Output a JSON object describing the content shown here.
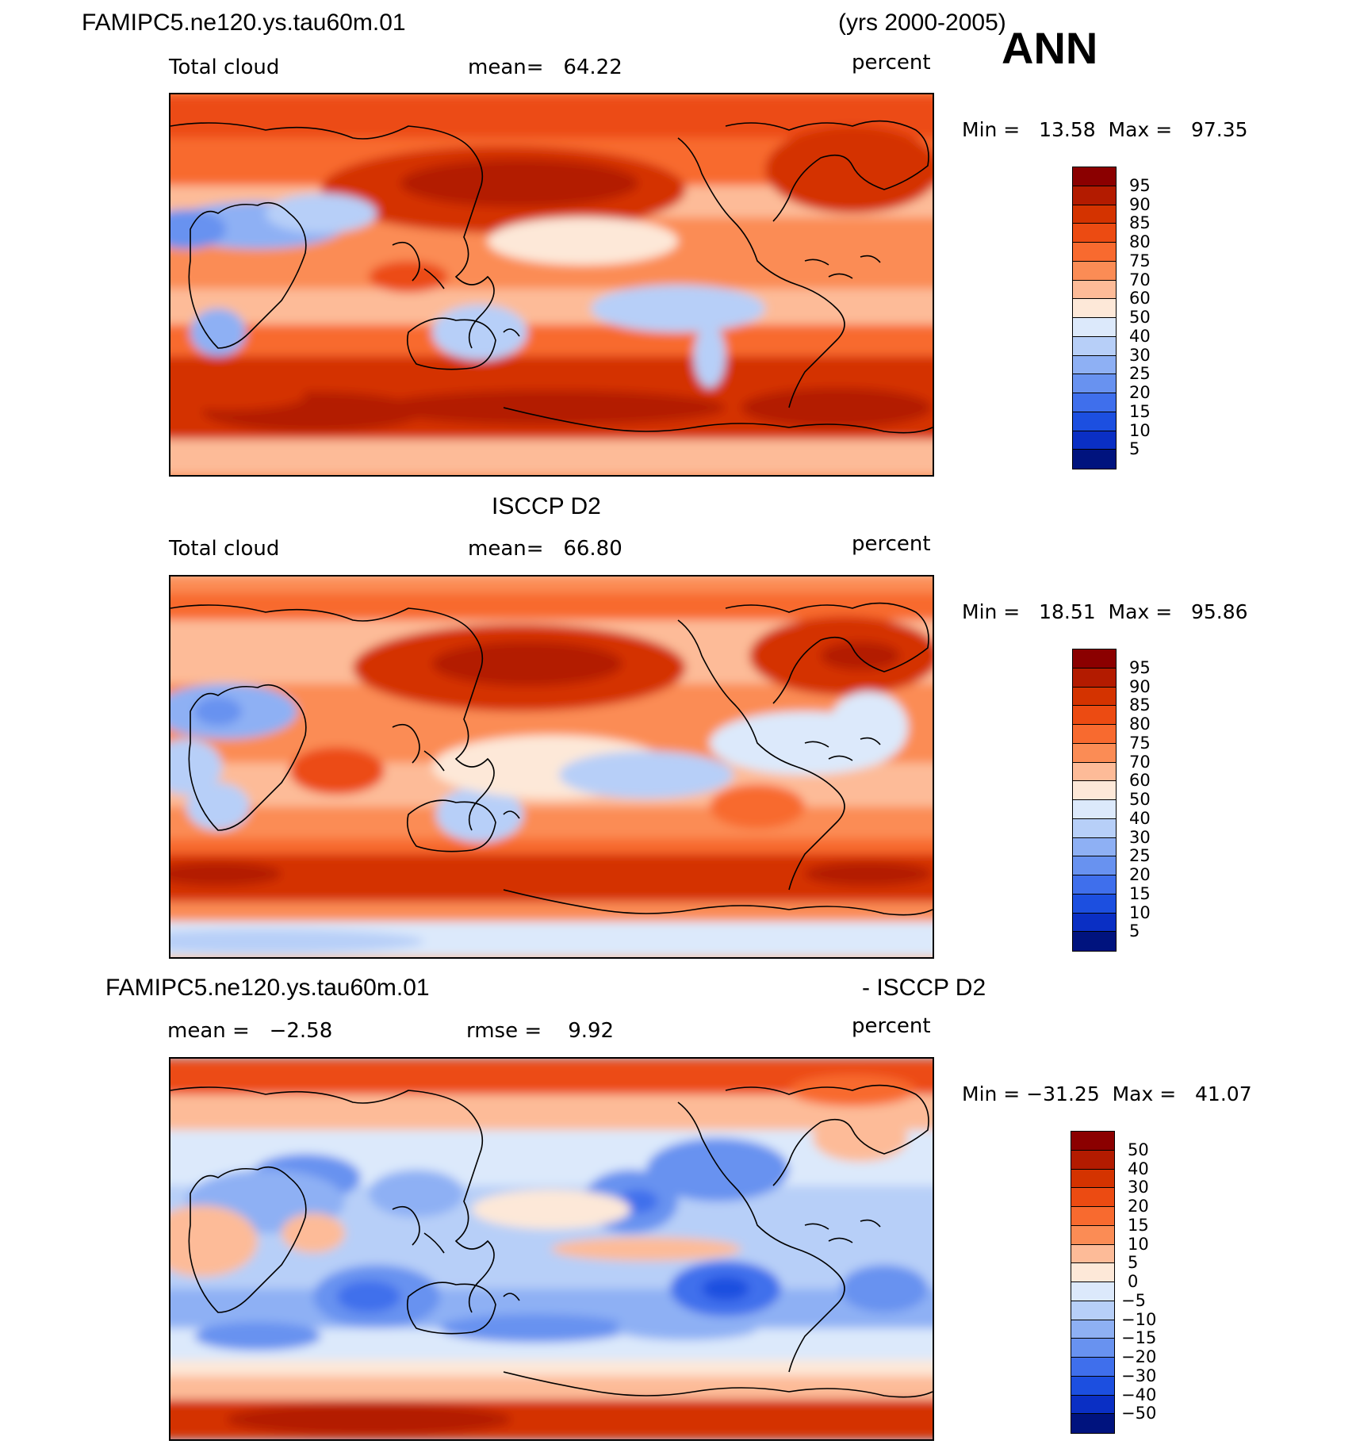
{
  "header": {
    "case_name": "FAMIPC5.ne120.ys.tau60m.01",
    "years": "(yrs 2000-2005)",
    "season": "ANN"
  },
  "panels": [
    {
      "id": "model",
      "variable": "Total cloud",
      "stat1": "mean=   64.22",
      "units": "percent",
      "minmax": "Min =   13.58  Max =   97.35",
      "pattern": "model"
    },
    {
      "id": "obs",
      "title": "ISCCP D2",
      "variable": "Total cloud",
      "stat1": "mean=   66.80",
      "units": "percent",
      "minmax": "Min =   18.51  Max =   95.86",
      "pattern": "obs"
    },
    {
      "id": "diff",
      "title_left": "FAMIPC5.ne120.ys.tau60m.01",
      "title_right": "- ISCCP D2",
      "stat1": "mean =   −2.58",
      "stat2": "rmse =    9.92",
      "units": "percent",
      "minmax": "Min = −31.25  Max =   41.07",
      "pattern": "diff"
    }
  ],
  "colorbars": {
    "abs": {
      "labels": [
        "95",
        "90",
        "85",
        "80",
        "75",
        "70",
        "60",
        "50",
        "40",
        "30",
        "25",
        "20",
        "15",
        "10",
        "5"
      ],
      "colors": [
        "#8b0000",
        "#b31b00",
        "#d43300",
        "#ec4b12",
        "#f86a2f",
        "#fb8c55",
        "#fdbb98",
        "#fde8d8",
        "#dce9fb",
        "#b7cff8",
        "#8eb0f4",
        "#6892f0",
        "#3f6fec",
        "#1c4fe0",
        "#0a2fc4",
        "#00137e"
      ]
    },
    "diff": {
      "labels": [
        "50",
        "40",
        "30",
        "20",
        "15",
        "10",
        "5",
        "0",
        "−5",
        "−10",
        "−15",
        "−20",
        "−30",
        "−40",
        "−50"
      ],
      "colors": [
        "#8b0000",
        "#b31b00",
        "#d43300",
        "#ec4b12",
        "#f86a2f",
        "#fb8c55",
        "#fdbb98",
        "#fde8d8",
        "#dce9fb",
        "#b7cff8",
        "#8eb0f4",
        "#6892f0",
        "#3f6fec",
        "#1c4fe0",
        "#0a2fc4",
        "#00137e"
      ]
    }
  }
}
